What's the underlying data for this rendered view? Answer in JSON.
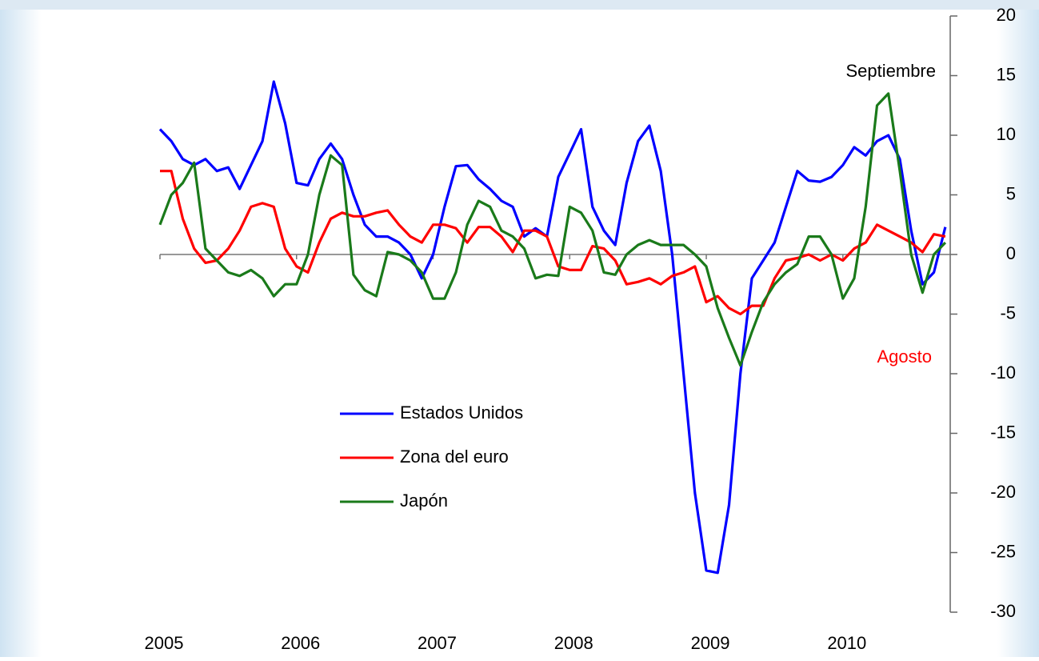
{
  "chart_data": {
    "type": "line",
    "categories": [
      "2005",
      null,
      null,
      null,
      null,
      null,
      null,
      null,
      null,
      null,
      null,
      null,
      "2006",
      null,
      null,
      null,
      null,
      null,
      null,
      null,
      null,
      null,
      null,
      null,
      "2007",
      null,
      null,
      null,
      null,
      null,
      null,
      null,
      null,
      null,
      null,
      null,
      "2008",
      null,
      null,
      null,
      null,
      null,
      null,
      null,
      null,
      null,
      null,
      null,
      "2009",
      null,
      null,
      null,
      null,
      null,
      null,
      null,
      null,
      null,
      null,
      null,
      "2010",
      null,
      null,
      null,
      null,
      null,
      null,
      null,
      null,
      null
    ],
    "series": [
      {
        "name": "Estados Unidos",
        "color": "#0000ff",
        "values": [
          10.5,
          9.5,
          8,
          7.5,
          8,
          7,
          7.3,
          5.5,
          7.5,
          9.5,
          14.5,
          11,
          6,
          5.8,
          8,
          9.3,
          8,
          5,
          2.5,
          1.5,
          1.5,
          1,
          0,
          -2,
          0,
          4,
          7.4,
          7.5,
          6.3,
          5.5,
          4.5,
          4,
          1.5,
          2.2,
          1.5,
          6.5,
          8.5,
          10.5,
          4,
          2,
          0.8,
          6,
          9.5,
          10.8,
          7,
          0,
          -10,
          -20,
          -26.5,
          -26.7,
          -21,
          -10,
          -2,
          -0.5,
          1,
          4,
          7,
          6.2,
          6.1,
          6.5,
          7.5,
          9,
          8.3,
          9.5,
          10,
          8,
          2,
          -2.5,
          -1.5,
          2.3
        ]
      },
      {
        "name": "Zona del euro",
        "color": "#ff0000",
        "values": [
          7,
          7,
          3,
          0.5,
          -0.7,
          -0.5,
          0.5,
          2,
          4,
          4.3,
          4,
          0.5,
          -1,
          -1.5,
          1,
          3,
          3.5,
          3.2,
          3.2,
          3.5,
          3.7,
          2.5,
          1.5,
          1,
          2.5,
          2.5,
          2.2,
          1,
          2.3,
          2.3,
          1.5,
          0.2,
          2,
          2,
          1.5,
          -1,
          -1.3,
          -1.3,
          0.7,
          0.5,
          -0.5,
          -2.5,
          -2.3,
          -2,
          -2.5,
          -1.8,
          -1.5,
          -1,
          -4,
          -3.5,
          -4.5,
          -5,
          -4.3,
          -4.3,
          -2,
          -0.5,
          -0.3,
          0,
          -0.5,
          0,
          -0.5,
          0.5,
          1,
          2.5,
          2,
          1.5,
          1,
          0.2,
          1.7,
          1.5
        ]
      },
      {
        "name": "Japón",
        "color": "#1a7a1a",
        "values": [
          2.5,
          5,
          6,
          7.7,
          0.5,
          -0.5,
          -1.5,
          -1.8,
          -1.3,
          -2,
          -3.5,
          -2.5,
          -2.5,
          0,
          5,
          8.3,
          7.5,
          -1.7,
          -3,
          -3.5,
          0.2,
          0,
          -0.5,
          -1.5,
          -3.7,
          -3.7,
          -1.5,
          2.5,
          4.5,
          4,
          2,
          1.5,
          0.5,
          -2,
          -1.7,
          -1.8,
          4,
          3.5,
          2,
          -1.5,
          -1.7,
          0,
          0.8,
          1.2,
          0.8,
          0.8,
          0.8,
          0,
          -1,
          -4.5,
          -7,
          -9.3,
          -6.5,
          -4,
          -2.5,
          -1.5,
          -0.8,
          1.5,
          1.5,
          0,
          -3.7,
          -2,
          4,
          12.5,
          13.5,
          7,
          0,
          -3.2,
          0,
          1
        ]
      }
    ],
    "annotations": [
      {
        "text": "Septiembre",
        "color": "#000000"
      },
      {
        "text": "Agosto",
        "color": "#ff0000"
      }
    ],
    "ylim": [
      -30,
      20
    ],
    "yticks": [
      20,
      15,
      10,
      5,
      0,
      -5,
      -10,
      -15,
      -20,
      -25,
      -30
    ],
    "y_axis_side": "right",
    "legend": "lower-left"
  }
}
